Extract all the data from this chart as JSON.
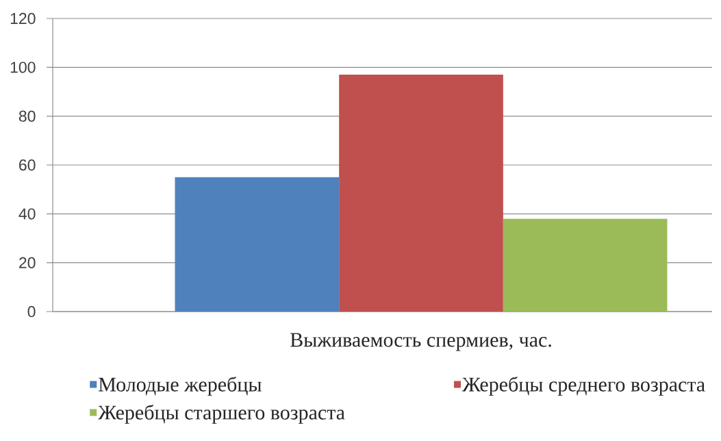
{
  "chart_data": {
    "type": "bar",
    "categories": [
      "Выживаемость спермиев, час."
    ],
    "series": [
      {
        "name": "Молодые жеребцы",
        "color": "#4f81bd",
        "values": [
          55
        ]
      },
      {
        "name": "Жеребцы среднего возраста",
        "color": "#c0504d",
        "values": [
          97
        ]
      },
      {
        "name": "Жеребцы старшего возраста",
        "color": "#9bbb59",
        "values": [
          38
        ]
      }
    ],
    "ylim": [
      0,
      120
    ],
    "yticks": [
      0,
      20,
      40,
      60,
      80,
      100,
      120
    ],
    "grid": "y",
    "legend": "bottom"
  }
}
